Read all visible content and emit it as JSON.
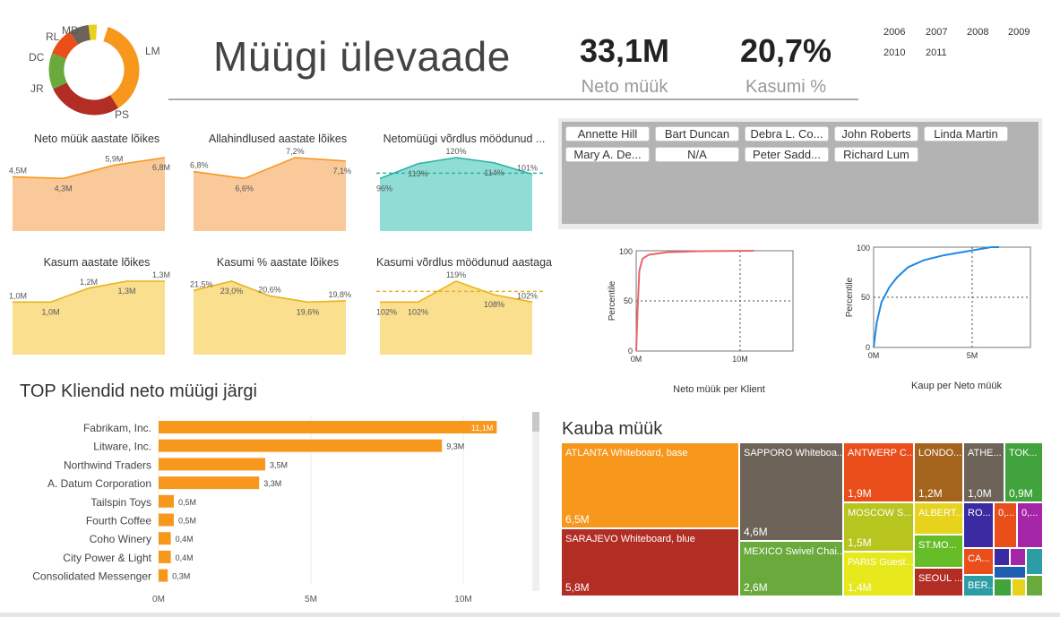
{
  "header": {
    "title": "Müügi ülevaade",
    "kpis": [
      {
        "value": "33,1M",
        "label": "Neto müük"
      },
      {
        "value": "20,7%",
        "label": "Kasumi %"
      }
    ],
    "years": [
      "2006",
      "2007",
      "2008",
      "2009",
      "2010",
      "2011"
    ]
  },
  "donut": {
    "labels": [
      "LM",
      "PS",
      "JR",
      "DC",
      "RL",
      "MD"
    ],
    "colors": [
      "#F7981D",
      "#B22D24",
      "#6AAA3C",
      "#E94E1B",
      "#6E6359",
      "#E7D21C"
    ]
  },
  "small_charts": [
    {
      "title": "Neto müük aastate lõikes",
      "labels": [
        "4,5M",
        "4,3M",
        "5,9M",
        "6,8M"
      ],
      "values": [
        4.5,
        4.3,
        5.9,
        6.8
      ],
      "fill": "#FAC99A",
      "line": "#F7981D"
    },
    {
      "title": "Allahindlused aastate lõikes",
      "labels": [
        "6,8%",
        "6,6%",
        "7,2%",
        "7,1%"
      ],
      "values": [
        6.8,
        6.6,
        7.2,
        7.1
      ],
      "fill": "#FAC99A",
      "line": "#F7981D"
    },
    {
      "title": "Netomüügi võrdlus möödunud ...",
      "labels": [
        "96%",
        "113%",
        "120%",
        "114%",
        "101%"
      ],
      "values": [
        96,
        113,
        120,
        114,
        101
      ],
      "fill": "#8FDDD5",
      "line": "#2CB3A5"
    },
    {
      "title": "Kasum aastate lõikes",
      "labels": [
        "1,0M",
        "1,0M",
        "1,2M",
        "1,3M",
        "1,3M"
      ],
      "values": [
        1.0,
        1.0,
        1.2,
        1.3,
        1.3
      ],
      "fill": "#F9DF8E",
      "line": "#E9B41C"
    },
    {
      "title": "Kasumi % aastate lõikes",
      "labels": [
        "21,5%",
        "23,0%",
        "20,6%",
        "19,6%",
        "19,8%"
      ],
      "values": [
        21.5,
        23.0,
        20.6,
        19.6,
        19.8
      ],
      "fill": "#F9DF8E",
      "line": "#E9B41C"
    },
    {
      "title": "Kasumi võrdlus möödunud aastaga",
      "labels": [
        "102%",
        "102%",
        "119%",
        "108%",
        "102%"
      ],
      "values": [
        102,
        102,
        119,
        108,
        102
      ],
      "fill": "#F9DF8E",
      "line": "#E9B41C"
    }
  ],
  "slicer": {
    "names": [
      "Annette Hill",
      "Bart Duncan",
      "Debra L. Co...",
      "John Roberts",
      "Linda Martin",
      "Mary A. De...",
      "N/A",
      "Peter Sadd...",
      "Richard Lum"
    ]
  },
  "percentile_charts": [
    {
      "ylabel": "Percentile",
      "xlabel": "Neto müük per Klient",
      "yticks": [
        "0",
        "50",
        "100"
      ],
      "xticks": [
        "0M",
        "10M"
      ],
      "color": "#E8666A"
    },
    {
      "ylabel": "Percentile",
      "xlabel": "Kaup per Neto müük",
      "yticks": [
        "0",
        "50",
        "100"
      ],
      "xticks": [
        "0M",
        "5M"
      ],
      "color": "#1E88E5"
    }
  ],
  "top_customers": {
    "title": "TOP Kliendid neto müügi järgi",
    "xticks": [
      "0M",
      "5M",
      "10M"
    ],
    "color": "#F7981D",
    "rows": [
      {
        "name": "Fabrikam, Inc.",
        "value": 11.1,
        "label": "11,1M"
      },
      {
        "name": "Litware, Inc.",
        "value": 9.3,
        "label": "9,3M"
      },
      {
        "name": "Northwind Traders",
        "value": 3.5,
        "label": "3,5M"
      },
      {
        "name": "A. Datum Corporation",
        "value": 3.3,
        "label": "3,3M"
      },
      {
        "name": "Tailspin Toys",
        "value": 0.5,
        "label": "0,5M"
      },
      {
        "name": "Fourth Coffee",
        "value": 0.5,
        "label": "0,5M"
      },
      {
        "name": "Coho Winery",
        "value": 0.4,
        "label": "0,4M"
      },
      {
        "name": "City Power & Light",
        "value": 0.4,
        "label": "0,4M"
      },
      {
        "name": "Consolidated Messenger",
        "value": 0.3,
        "label": "0,3M"
      }
    ]
  },
  "treemap": {
    "title": "Kauba müük",
    "cells": [
      {
        "name": "ATLANTA Whiteboard, base",
        "value": "6,5M",
        "color": "#F7981D"
      },
      {
        "name": "SARAJEVO Whiteboard, blue",
        "value": "5,8M",
        "color": "#B22D24"
      },
      {
        "name": "SAPPORO Whiteboa...",
        "value": "4,6M",
        "color": "#6E6359"
      },
      {
        "name": "MEXICO Swivel Chai...",
        "value": "2,6M",
        "color": "#6AAA3C"
      },
      {
        "name": "ANTWERP C...",
        "value": "1,9M",
        "color": "#E94E1B"
      },
      {
        "name": "MOSCOW S...",
        "value": "1,5M",
        "color": "#B8C51F"
      },
      {
        "name": "PARIS Guest...",
        "value": "1,4M",
        "color": "#E7E91C"
      },
      {
        "name": "LONDO...",
        "value": "1,2M",
        "color": "#A5641E"
      },
      {
        "name": "ATHE...",
        "value": "1,0M",
        "color": "#6E6359"
      },
      {
        "name": "TOK...",
        "value": "0,9M",
        "color": "#41A33B"
      },
      {
        "name": "ALBERT...",
        "value": "",
        "color": "#E7D21C"
      },
      {
        "name": "ST.MO...",
        "value": "",
        "color": "#66BD27"
      },
      {
        "name": "SEOUL ...",
        "value": "",
        "color": "#B22D24"
      },
      {
        "name": "RO...",
        "value": "",
        "color": "#3A2BA2"
      },
      {
        "name": "0,...",
        "value": "",
        "color": "#E94E1B"
      },
      {
        "name": "0,...",
        "value": "",
        "color": "#A425A6"
      },
      {
        "name": "CA...",
        "value": "",
        "color": "#E94E1B"
      },
      {
        "name": "BER...",
        "value": "",
        "color": "#2C9DA5"
      }
    ]
  }
}
